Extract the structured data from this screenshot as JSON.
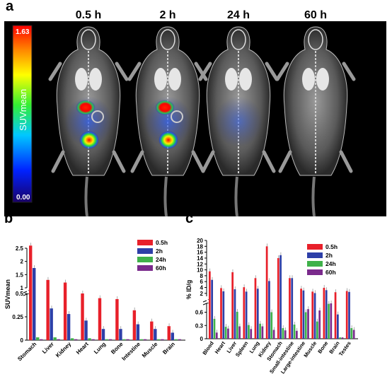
{
  "panel_a": {
    "letter": "a",
    "timepoints": [
      "0.5 h",
      "2 h",
      "24 h",
      "60 h"
    ],
    "colorbar": {
      "label": "SUVmean",
      "max": "1.63",
      "min": "0.00"
    }
  },
  "chart_data": [
    {
      "panel": "b",
      "type": "bar",
      "ylabel": "SUVmean",
      "yaxis": {
        "broken": true,
        "lower": [
          0,
          0.5
        ],
        "upper": [
          1,
          2.5
        ],
        "ticks": [
          "0",
          "0.25",
          "0.5",
          "1",
          "1.5",
          "2",
          "2.5"
        ]
      },
      "categories": [
        "Stomach",
        "Liver",
        "Kidney",
        "Heart",
        "Lung",
        "Bone",
        "Intestine",
        "Muscle",
        "Brain"
      ],
      "series": [
        {
          "name": "0.5h",
          "color": "#e8202a",
          "values": [
            2.6,
            1.3,
            1.2,
            0.98,
            0.45,
            0.44,
            0.32,
            0.2,
            0.15
          ]
        },
        {
          "name": "2h",
          "color": "#2d3fa8",
          "values": [
            1.75,
            0.34,
            0.28,
            0.21,
            0.12,
            0.12,
            0.17,
            0.12,
            0.08
          ]
        },
        {
          "name": "24h",
          "color": "#3fb14a",
          "values": [
            0.03,
            0.03,
            0.02,
            0.02,
            0.01,
            0.01,
            0.01,
            0.01,
            0.01
          ]
        },
        {
          "name": "60h",
          "color": "#7a2a8c",
          "values": [
            0.01,
            0.01,
            0.01,
            0.01,
            0.01,
            0.01,
            0.01,
            0.01,
            0.01
          ]
        }
      ],
      "legend": "top-right"
    },
    {
      "panel": "c",
      "type": "bar",
      "ylabel": "% ID/g",
      "yaxis": {
        "broken": true,
        "lower": [
          0,
          0.8
        ],
        "upper": [
          1,
          20
        ],
        "ticks": [
          "0",
          "0.3",
          "0.6",
          "2",
          "4",
          "6",
          "8",
          "10",
          "12",
          "14",
          "16",
          "18",
          "20"
        ]
      },
      "categories": [
        "Blood",
        "Heart",
        "Liver",
        "Spleen",
        "Lung",
        "Kidney",
        "Stomach",
        "Small-intestine",
        "Large-intestine",
        "Muscle",
        "Bone",
        "Brain",
        "Testes"
      ],
      "series": [
        {
          "name": "0.5h",
          "color": "#e8202a",
          "values": [
            9.5,
            3.8,
            9.2,
            4.1,
            7.2,
            18,
            14,
            7.2,
            3.6,
            2.6,
            3.9,
            2.4,
            2.8
          ]
        },
        {
          "name": "2h",
          "color": "#2d3fa8",
          "values": [
            6.6,
            2.7,
            3.4,
            2.6,
            3.6,
            6.2,
            15,
            7.2,
            3.0,
            2.1,
            3.1,
            0.55,
            2.5
          ]
        },
        {
          "name": "24h",
          "color": "#3fb14a",
          "values": [
            0.45,
            0.27,
            0.61,
            0.31,
            0.34,
            0.6,
            0.24,
            0.32,
            0.6,
            0.39,
            0.79,
            0.03,
            0.24
          ]
        },
        {
          "name": "60h",
          "color": "#7a2a8c",
          "values": [
            0.14,
            0.23,
            0.28,
            0.22,
            0.28,
            0.2,
            0.19,
            0.18,
            0.67,
            0.64,
            0.8,
            0.03,
            0.2
          ]
        }
      ],
      "legend": "top-right"
    }
  ]
}
